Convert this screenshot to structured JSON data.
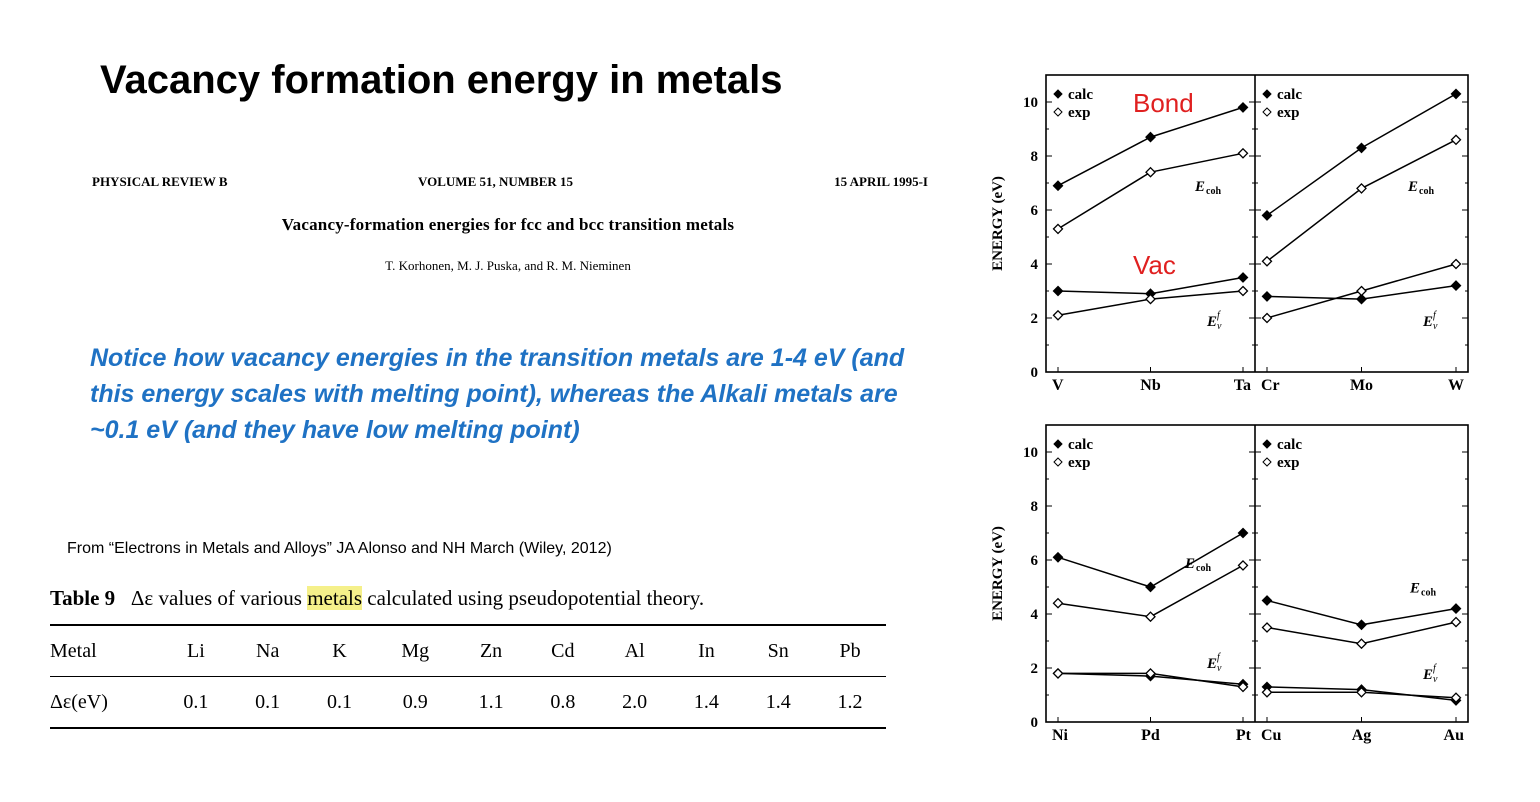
{
  "slide": {
    "title": "Vacancy formation energy in metals",
    "notice": "Notice how vacancy energies in the transition metals are 1-4 eV (and this energy scales with melting point), whereas the Alkali metals are ~0.1 eV (and they have low melting point)",
    "source": "From “Electrons in Metals and Alloys” JA Alonso and NH March (Wiley, 2012)",
    "bond_label": "Bond",
    "vac_label": "Vac"
  },
  "paper": {
    "journal": "PHYSICAL REVIEW B",
    "volume": "VOLUME 51, NUMBER 15",
    "date": "15 APRIL 1995-I",
    "title": "Vacancy-formation energies for fcc and bcc transition metals",
    "authors": "T. Korhonen, M. J. Puska, and R. M. Nieminen"
  },
  "table9": {
    "caption_label": "Table 9",
    "caption_pre": "Δε values of various ",
    "caption_highlight": "metals",
    "caption_post": " calculated using pseudopotential theory.",
    "header": [
      "Metal",
      "Li",
      "Na",
      "K",
      "Mg",
      "Zn",
      "Cd",
      "Al",
      "In",
      "Sn",
      "Pb"
    ],
    "row": [
      "Δε(eV)",
      "0.1",
      "0.1",
      "0.1",
      "0.9",
      "1.1",
      "0.8",
      "2.0",
      "1.4",
      "1.4",
      "1.2"
    ]
  },
  "chart_data": [
    {
      "type": "line",
      "ylabel": "ENERGY (eV)",
      "ylim": [
        0,
        11
      ],
      "yticks": [
        "0",
        "2",
        "4",
        "6",
        "8",
        "10"
      ],
      "legend": [
        "calc",
        "exp"
      ],
      "categories": [
        "V",
        "Nb",
        "Ta"
      ],
      "ecoh_label": "E",
      "ecoh_sub": "coh",
      "ev_label": "E",
      "ev_sub": "v",
      "ev_sup": "f",
      "series": [
        {
          "name": "Ecoh calc",
          "values": [
            6.9,
            8.7,
            9.8
          ]
        },
        {
          "name": "Ecoh exp",
          "values": [
            5.3,
            7.4,
            8.1
          ]
        },
        {
          "name": "Evf calc",
          "values": [
            3.0,
            2.9,
            3.5
          ]
        },
        {
          "name": "Evf exp",
          "values": [
            2.1,
            2.7,
            3.0
          ]
        }
      ]
    },
    {
      "type": "line",
      "ylim": [
        0,
        11
      ],
      "legend": [
        "calc",
        "exp"
      ],
      "categories": [
        "Cr",
        "Mo",
        "W"
      ],
      "ecoh_label": "E",
      "ecoh_sub": "coh",
      "ev_label": "E",
      "ev_sub": "v",
      "ev_sup": "f",
      "series": [
        {
          "name": "Ecoh calc",
          "values": [
            5.8,
            8.3,
            10.3
          ]
        },
        {
          "name": "Ecoh exp",
          "values": [
            4.1,
            6.8,
            8.6
          ]
        },
        {
          "name": "Evf calc",
          "values": [
            2.8,
            2.7,
            3.2
          ]
        },
        {
          "name": "Evf exp",
          "values": [
            2.0,
            3.0,
            4.0
          ]
        }
      ]
    },
    {
      "type": "line",
      "ylabel": "ENERGY (eV)",
      "ylim": [
        0,
        11
      ],
      "yticks": [
        "0",
        "2",
        "4",
        "6",
        "8",
        "10"
      ],
      "legend": [
        "calc",
        "exp"
      ],
      "categories": [
        "Ni",
        "Pd",
        "Pt"
      ],
      "ecoh_label": "E",
      "ecoh_sub": "coh",
      "ev_label": "E",
      "ev_sub": "v",
      "ev_sup": "f",
      "series": [
        {
          "name": "Ecoh calc",
          "values": [
            6.1,
            5.0,
            7.0
          ]
        },
        {
          "name": "Ecoh exp",
          "values": [
            4.4,
            3.9,
            5.8
          ]
        },
        {
          "name": "Evf calc",
          "values": [
            1.8,
            1.7,
            1.4
          ]
        },
        {
          "name": "Evf exp",
          "values": [
            1.8,
            1.8,
            1.3
          ]
        }
      ]
    },
    {
      "type": "line",
      "ylim": [
        0,
        11
      ],
      "legend": [
        "calc",
        "exp"
      ],
      "categories": [
        "Cu",
        "Ag",
        "Au"
      ],
      "ecoh_label": "E",
      "ecoh_sub": "coh",
      "ev_label": "E",
      "ev_sub": "v",
      "ev_sup": "f",
      "series": [
        {
          "name": "Ecoh calc",
          "values": [
            4.5,
            3.6,
            4.2
          ]
        },
        {
          "name": "Ecoh exp",
          "values": [
            3.5,
            2.9,
            3.7
          ]
        },
        {
          "name": "Evf calc",
          "values": [
            1.3,
            1.2,
            0.8
          ]
        },
        {
          "name": "Evf exp",
          "values": [
            1.1,
            1.1,
            0.9
          ]
        }
      ]
    }
  ]
}
